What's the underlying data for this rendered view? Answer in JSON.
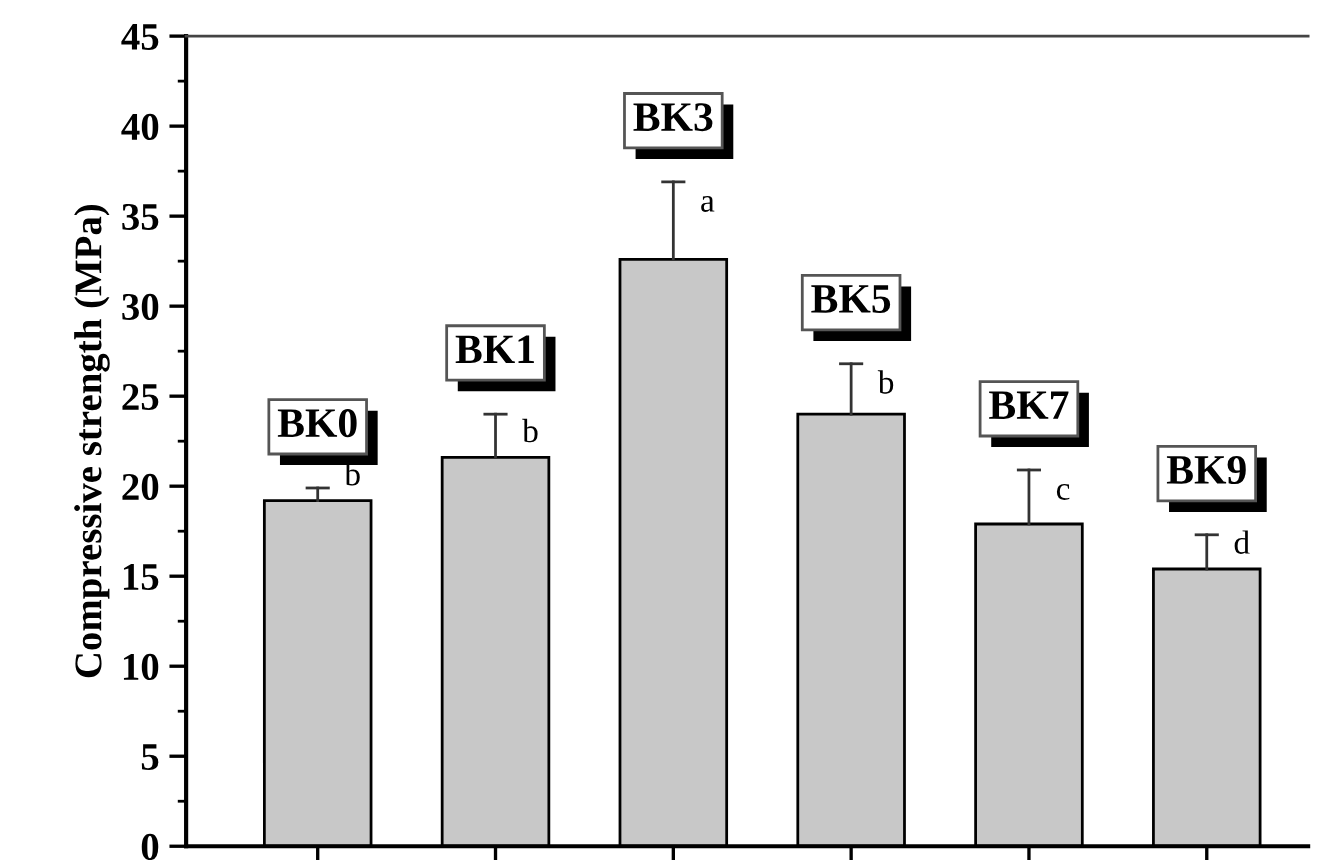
{
  "chart_data": {
    "type": "bar",
    "ylabel": "Compressive strength (MPa)",
    "categories": [
      "BK0",
      "BK1",
      "BK3",
      "BK5",
      "BK7",
      "BK9"
    ],
    "values": [
      19.2,
      21.6,
      32.6,
      24.0,
      17.9,
      15.4
    ],
    "errors": [
      [
        19.2,
        19.9
      ],
      [
        21.6,
        24.0
      ],
      [
        32.6,
        36.9
      ],
      [
        24.0,
        26.8
      ],
      [
        17.9,
        20.9
      ],
      [
        15.4,
        17.3
      ]
    ],
    "color": "#c8c8c8",
    "ylim": [
      0,
      45
    ],
    "yticks": [
      0,
      5,
      10,
      15,
      20,
      25,
      30,
      35,
      40,
      45
    ],
    "annotations": [
      "b",
      "b",
      "a",
      "b",
      "c",
      "d"
    ],
    "grid": false,
    "legend": false,
    "tick_labels": "y"
  }
}
